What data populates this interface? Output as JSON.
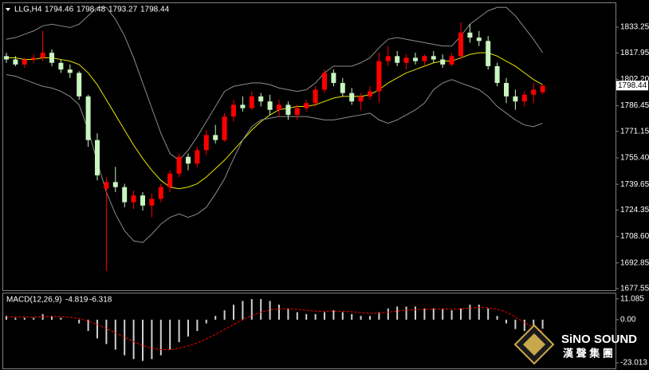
{
  "chart_data": [
    {
      "type": "candlestick",
      "title": "LLG,H4",
      "up_color": "#ff0000",
      "down_color": "#c8f5c0",
      "ylim": [
        1676.1,
        1847.5
      ],
      "yticks": [
        1833.25,
        1817.95,
        {
          "value": 1802.2,
          "label": "1802.20"
        },
        1786.45,
        1771.15,
        {
          "value": 1755.4,
          "label": "1755.40"
        },
        1739.65,
        1724.35,
        {
          "value": 1708.6,
          "label": "1708.60"
        },
        1692.85,
        1677.55
      ],
      "ohlc": [
        [
          1816,
          1818,
          1812,
          1814
        ],
        [
          1814,
          1816,
          1810,
          1811
        ],
        [
          1811,
          1815,
          1809,
          1814
        ],
        [
          1814,
          1817,
          1812,
          1815
        ],
        [
          1815,
          1831,
          1813,
          1818
        ],
        [
          1818,
          1820,
          1810,
          1812
        ],
        [
          1812,
          1814,
          1806,
          1808
        ],
        [
          1808,
          1811,
          1803,
          1806
        ],
        [
          1806,
          1807,
          1790,
          1792
        ],
        [
          1792,
          1793,
          1762,
          1766
        ],
        [
          1766,
          1770,
          1742,
          1745
        ],
        [
          1737,
          1744,
          1688,
          1741
        ],
        [
          1741,
          1750,
          1735,
          1738
        ],
        [
          1738,
          1740,
          1726,
          1729
        ],
        [
          1729,
          1736,
          1725,
          1733
        ],
        [
          1733,
          1735,
          1724,
          1727
        ],
        [
          1727,
          1734,
          1720,
          1731
        ],
        [
          1731,
          1740,
          1729,
          1738
        ],
        [
          1738,
          1748,
          1735,
          1746
        ],
        [
          1746,
          1758,
          1744,
          1756
        ],
        [
          1756,
          1758,
          1748,
          1752
        ],
        [
          1752,
          1762,
          1750,
          1760
        ],
        [
          1760,
          1772,
          1757,
          1769
        ],
        [
          1769,
          1775,
          1764,
          1766
        ],
        [
          1766,
          1782,
          1765,
          1780
        ],
        [
          1780,
          1790,
          1777,
          1787
        ],
        [
          1787,
          1792,
          1783,
          1785
        ],
        [
          1785,
          1795,
          1784,
          1792
        ],
        [
          1792,
          1794,
          1786,
          1789
        ],
        [
          1789,
          1793,
          1781,
          1784
        ],
        [
          1784,
          1790,
          1780,
          1787
        ],
        [
          1787,
          1789,
          1778,
          1781
        ],
        [
          1781,
          1787,
          1778,
          1785
        ],
        [
          1785,
          1790,
          1783,
          1788
        ],
        [
          1788,
          1798,
          1786,
          1796
        ],
        [
          1796,
          1808,
          1794,
          1806
        ],
        [
          1806,
          1808,
          1798,
          1800
        ],
        [
          1800,
          1803,
          1792,
          1794
        ],
        [
          1794,
          1797,
          1787,
          1789
        ],
        [
          1789,
          1794,
          1784,
          1792
        ],
        [
          1792,
          1798,
          1790,
          1795
        ],
        [
          1795,
          1818,
          1788,
          1813
        ],
        [
          1813,
          1822,
          1810,
          1816
        ],
        [
          1816,
          1819,
          1810,
          1812
        ],
        [
          1812,
          1817,
          1808,
          1815
        ],
        [
          1815,
          1818,
          1811,
          1813
        ],
        [
          1813,
          1817,
          1810,
          1816
        ],
        [
          1816,
          1819,
          1812,
          1814
        ],
        [
          1814,
          1817,
          1809,
          1811
        ],
        [
          1811,
          1818,
          1810,
          1816
        ],
        [
          1816,
          1836,
          1814,
          1830
        ],
        [
          1830,
          1835,
          1824,
          1827
        ],
        [
          1827,
          1831,
          1822,
          1825
        ],
        [
          1825,
          1828,
          1808,
          1810
        ],
        [
          1810,
          1812,
          1798,
          1800
        ],
        [
          1800,
          1803,
          1788,
          1792
        ],
        [
          1792,
          1796,
          1784,
          1789
        ],
        [
          1789,
          1795,
          1786,
          1793
        ],
        [
          1793,
          1800,
          1788,
          1796
        ],
        [
          1794.46,
          1798.48,
          1793.27,
          1798.44
        ]
      ],
      "series": [
        {
          "color": "#e6e600",
          "values": [
            1815,
            1815,
            1814,
            1814,
            1815,
            1815,
            1814,
            1813,
            1811,
            1806,
            1799,
            1790,
            1781,
            1772,
            1763,
            1755,
            1748,
            1742,
            1738,
            1737,
            1738,
            1740,
            1744,
            1749,
            1754,
            1760,
            1766,
            1772,
            1777,
            1781,
            1784,
            1785,
            1786,
            1786,
            1787,
            1789,
            1791,
            1792,
            1792,
            1792,
            1793,
            1796,
            1800,
            1803,
            1806,
            1808,
            1810,
            1812,
            1813,
            1813,
            1815,
            1817,
            1818,
            1818,
            1816,
            1813,
            1810,
            1806,
            1802,
            1799
          ]
        },
        {
          "color": "#8c8c8c",
          "values": [
            1826,
            1827,
            1829,
            1831,
            1834,
            1835,
            1834,
            1833,
            1835,
            1840,
            1845,
            1845,
            1838,
            1828,
            1815,
            1800,
            1785,
            1770,
            1758,
            1754,
            1760,
            1768,
            1777,
            1786,
            1795,
            1798,
            1799,
            1800,
            1800,
            1799,
            1797,
            1796,
            1795,
            1796,
            1800,
            1806,
            1810,
            1810,
            1810,
            1812,
            1815,
            1821,
            1826,
            1827,
            1826,
            1825,
            1824,
            1823,
            1822,
            1822,
            1828,
            1835,
            1839,
            1843,
            1845,
            1845,
            1840,
            1833,
            1826,
            1818
          ]
        },
        {
          "color": "#8c8c8c",
          "values": [
            1805,
            1804,
            1802,
            1800,
            1798,
            1797,
            1795,
            1792,
            1787,
            1772,
            1753,
            1735,
            1722,
            1712,
            1706,
            1705,
            1710,
            1716,
            1720,
            1722,
            1720,
            1722,
            1726,
            1734,
            1743,
            1755,
            1766,
            1774,
            1778,
            1779,
            1780,
            1780,
            1780,
            1780,
            1779,
            1778,
            1778,
            1779,
            1780,
            1781,
            1782,
            1778,
            1776,
            1778,
            1781,
            1784,
            1788,
            1796,
            1800,
            1802,
            1800,
            1798,
            1796,
            1792,
            1786,
            1782,
            1778,
            1775,
            1774,
            1776
          ]
        }
      ]
    },
    {
      "type": "macd",
      "title": "MACD(12,26,9)",
      "hist_color": "#d0d0d0",
      "signal_color": "#ff0000",
      "ylim": [
        -26,
        14
      ],
      "yticks": [
        11.085,
        {
          "value": 0,
          "label": "0.00"
        },
        -23.013
      ],
      "histogram": [
        2,
        1,
        1,
        1,
        3,
        2,
        1,
        0,
        -2,
        -6,
        -10,
        -13,
        -16,
        -19,
        -21,
        -22,
        -21,
        -19,
        -16,
        -12,
        -9,
        -6,
        -2,
        2,
        5,
        8,
        10,
        11,
        11,
        10,
        8,
        6,
        4,
        3,
        3,
        4,
        5,
        4,
        3,
        2,
        2,
        4,
        6,
        7,
        7,
        7,
        6,
        6,
        6,
        5,
        6,
        8,
        8,
        6,
        2,
        -2,
        -5,
        -6,
        -6,
        -4.819
      ],
      "signal": [
        1.5,
        1.5,
        1.4,
        1.3,
        1.6,
        1.7,
        1.6,
        1.3,
        0.6,
        -0.7,
        -2.6,
        -4.7,
        -7,
        -9.4,
        -11.7,
        -13.8,
        -15.2,
        -16,
        -16,
        -15.2,
        -14,
        -12.4,
        -10.3,
        -7.8,
        -5.2,
        -2.6,
        0,
        2.2,
        4,
        5.2,
        5.8,
        5.8,
        5.5,
        5,
        4.6,
        4.5,
        4.6,
        4.5,
        4.2,
        3.8,
        3.4,
        3.5,
        4,
        4.6,
        5,
        5.4,
        5.5,
        5.6,
        5.7,
        5.6,
        5.7,
        6.1,
        6.5,
        6.4,
        5.6,
        4.1,
        1.5,
        -1.5,
        -4,
        -6.318
      ]
    }
  ],
  "logo": {
    "name": "SiNO SOUND",
    "subtitle": "漢 聲 集 團"
  }
}
